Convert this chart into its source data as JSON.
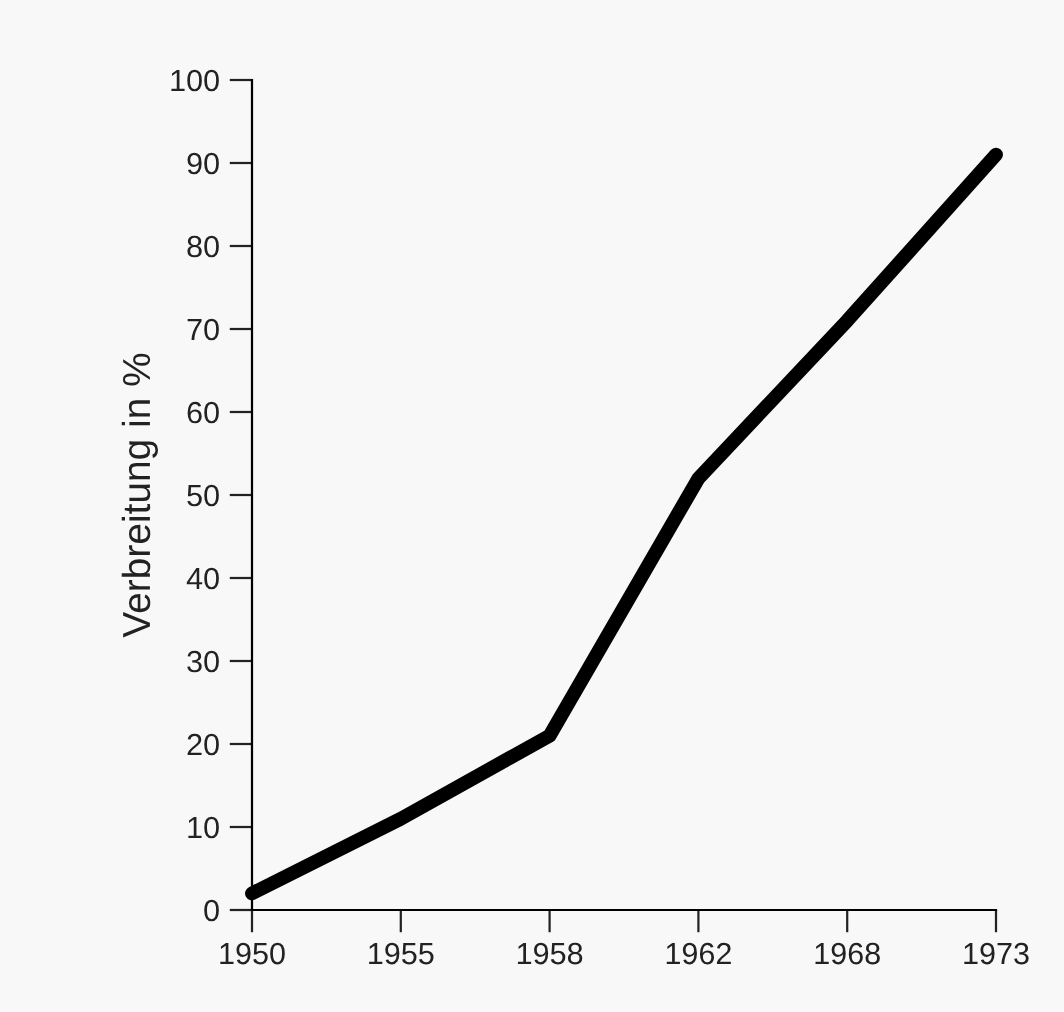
{
  "chart_data": {
    "type": "line",
    "ylabel": "Verbreitung in %",
    "categories": [
      "1950",
      "1955",
      "1958",
      "1962",
      "1968",
      "1973"
    ],
    "series": [
      {
        "color": "#000000",
        "values": [
          2,
          11,
          21,
          52,
          71,
          91
        ]
      }
    ],
    "ylim": [
      0,
      100
    ],
    "yticks": [
      0,
      10,
      20,
      30,
      40,
      50,
      60,
      70,
      80,
      90,
      100
    ],
    "grid": false,
    "legend": false,
    "marker": "none",
    "line_style": "solid"
  }
}
